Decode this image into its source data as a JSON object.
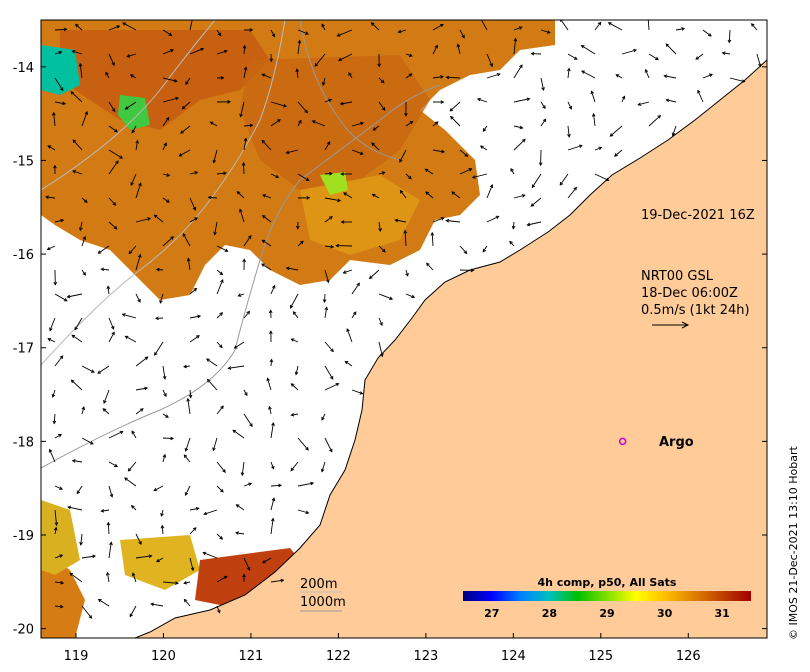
{
  "map": {
    "x_axis": {
      "ticks": [
        "119",
        "120",
        "121",
        "122",
        "123",
        "124",
        "125",
        "126"
      ],
      "range": [
        118.6,
        126.9
      ]
    },
    "y_axis": {
      "ticks": [
        "-14",
        "-15",
        "-16",
        "-17",
        "-18",
        "-19",
        "-20"
      ],
      "range": [
        -20.1,
        -13.5
      ]
    },
    "colors": {
      "land": "#ffcc99",
      "sea": "#ffffff",
      "frame": "#000000",
      "contour_200": "#bbbbbb",
      "contour_1000": "#999999"
    }
  },
  "annotations": {
    "timestamp": "19-Dec-2021 16Z",
    "current_source": "NRT00 GSL",
    "current_time": "18-Dec 06:00Z",
    "scale_label": "0.5m/s (1kt 24h)"
  },
  "argo": {
    "label": "Argo",
    "lon": 125.25,
    "lat": -18.0,
    "color": "#cc00cc"
  },
  "contours": {
    "label_200": "200m",
    "label_1000": "1000m"
  },
  "colorbar": {
    "title": "4h comp, p50, All Sats",
    "ticks": [
      "27",
      "28",
      "29",
      "30",
      "31"
    ],
    "range": [
      26.5,
      31.5
    ],
    "stops": [
      "#000080",
      "#0000ff",
      "#0080ff",
      "#00c0c0",
      "#00c000",
      "#80e000",
      "#ffff00",
      "#ffc000",
      "#e08000",
      "#c04000",
      "#a00000"
    ]
  },
  "credit": "© IMOS 21-Dec-2021 13:10 Hobart"
}
